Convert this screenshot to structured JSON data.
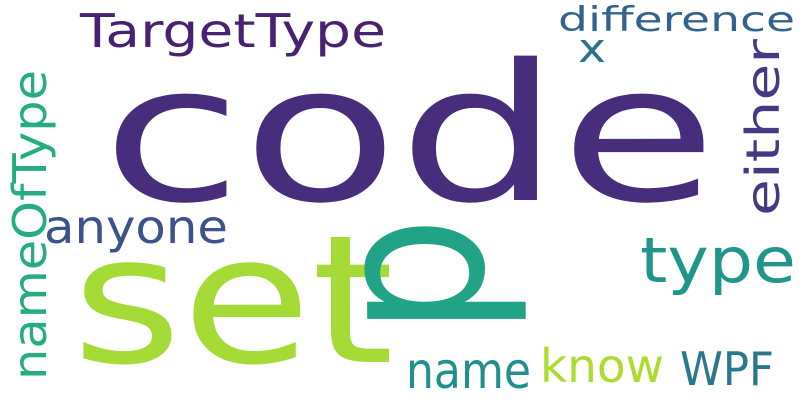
{
  "words": [
    {
      "text": "code",
      "color": "#472d7b"
    },
    {
      "text": "set",
      "color": "#a5db36"
    },
    {
      "text": "p",
      "color": "#20a386"
    },
    {
      "text": "TargetType",
      "color": "#482173"
    },
    {
      "text": "type",
      "color": "#1f958b"
    },
    {
      "text": "either",
      "color": "#443a83"
    },
    {
      "text": "anyone",
      "color": "#3b528b"
    },
    {
      "text": "nameOfType",
      "color": "#25ac82"
    },
    {
      "text": "difference",
      "color": "#33638d"
    },
    {
      "text": "x",
      "color": "#2c728e"
    },
    {
      "text": "name",
      "color": "#218f8d"
    },
    {
      "text": "know",
      "color": "#addc30"
    },
    {
      "text": "WPF",
      "color": "#2a788e"
    }
  ]
}
